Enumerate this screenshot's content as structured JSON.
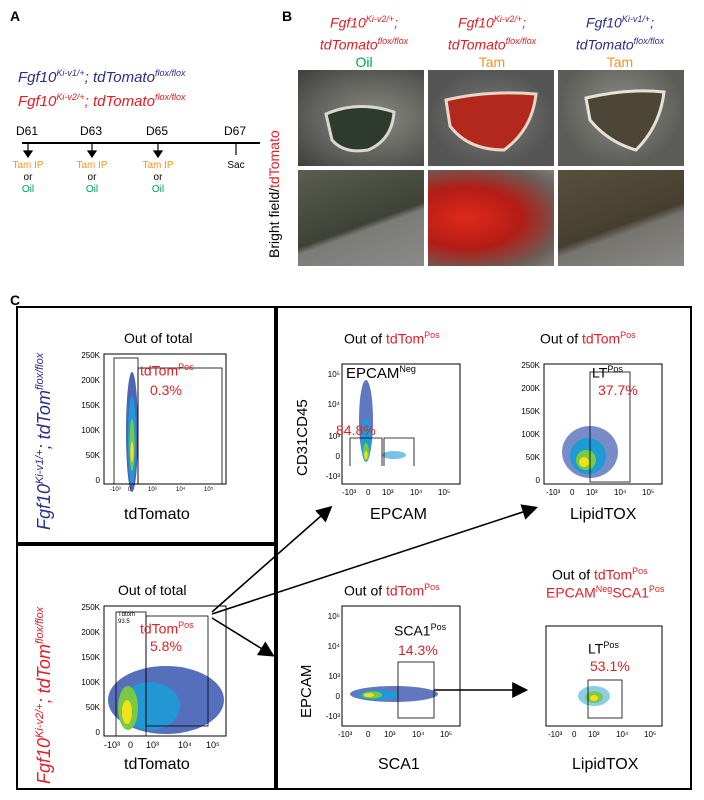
{
  "panelA": {
    "letter": "A",
    "line1_gene": "Fgf10",
    "line1_sup": "Ki-v1/+",
    "line1_rest": "; tdTomato",
    "line1_sup2": "flox/flox",
    "line2_gene": "Fgf10",
    "line2_sup": "Ki-v2/+",
    "line2_rest": "; tdTomato",
    "line2_sup2": "flox/flox",
    "days": [
      "D61",
      "D63",
      "D65",
      "D67"
    ],
    "treat_tam": "Tam IP",
    "treat_or": "or",
    "treat_oil": "Oil",
    "sac": "Sac"
  },
  "panelB": {
    "letter": "B",
    "ylabel_bf": "Bright field/",
    "ylabel_td": "tdTomato",
    "cols": [
      {
        "gene": "Fgf10",
        "sup": "Ki-v2/+",
        "semi": ";",
        "tdt": "tdTomato",
        "tdt_sup": "flox/flox",
        "treat": "Oil",
        "genecolor": "#e31e24",
        "treatcolor": "#00a651"
      },
      {
        "gene": "Fgf10",
        "sup": "Ki-v2/+",
        "semi": ";",
        "tdt": "tdTomato",
        "tdt_sup": "flox/flox",
        "treat": "Tam",
        "genecolor": "#e31e24",
        "treatcolor": "#f7941d"
      },
      {
        "gene": "Fgf10",
        "sup": "Ki-v1/+",
        "semi": ";",
        "tdt": "tdTomato",
        "tdt_sup": "flox/flox",
        "treat": "Tam",
        "genecolor": "#2b2e8c",
        "treatcolor": "#f7941d"
      }
    ]
  },
  "panelC": {
    "letter": "C",
    "v1_label": {
      "gene": "Fgf10",
      "sup": "Ki-v1/+",
      "rest": "; tdTom",
      "sup2": "flox/flox"
    },
    "v2_label": {
      "gene": "Fgf10",
      "sup": "Ki-v2/+",
      "rest": "; tdTom",
      "sup2": "flox/flox"
    },
    "plot1": {
      "title": "Out of total",
      "gate": "tdTom",
      "gate_sup": "Pos",
      "pct": "0.3%",
      "xlabel": "tdTomato"
    },
    "plot2": {
      "title_pre": "Out of ",
      "title_red": "tdTom",
      "title_sup": "Pos",
      "gate": "EPCAM",
      "gate_sup": "Neg",
      "pct": "84.8%",
      "ylabel": "CD31CD45",
      "xlabel": "EPCAM"
    },
    "plot3": {
      "title_pre": "Out of ",
      "title_red": "tdTom",
      "title_sup": "Pos",
      "gate": "LT",
      "gate_sup": "Pos",
      "pct": "37.7%",
      "xlabel": "LipidTOX"
    },
    "plot4": {
      "title": "Out of total",
      "gate": "tdTom",
      "gate_sup": "Pos",
      "pct": "5.8%",
      "xlabel": "tdTomato",
      "small_gate_a": "Tdtom",
      "small_gate_b": "93.5"
    },
    "plot5": {
      "title_pre": "Out of ",
      "title_red": "tdTom",
      "title_sup": "Pos",
      "gate": "SCA1",
      "gate_sup": "Pos",
      "pct": "14.3%",
      "ylabel": "EPCAM",
      "xlabel": "SCA1"
    },
    "plot6": {
      "title_pre": "Out of ",
      "title_red": "tdTom",
      "title_sup": "Pos",
      "line2_a": "EPCAM",
      "line2_a_sup": "Neg",
      "line2_b": "SCA1",
      "line2_b_sup": "Pos",
      "gate": "LT",
      "gate_sup": "Pos",
      "pct": "53.1%",
      "xlabel": "LipidTOX"
    },
    "yticks_lin": [
      "250K",
      "200K",
      "150K",
      "100K",
      "50K",
      "0"
    ],
    "xticks_log": [
      "-10³",
      "0",
      "10³",
      "10⁴",
      "10⁵"
    ],
    "yticks_log": [
      "10⁵",
      "10⁴",
      "10³",
      "0",
      "-10³"
    ],
    "xticks_small": [
      "-10³",
      "0",
      "10³",
      "10⁴",
      "10⁵"
    ]
  }
}
